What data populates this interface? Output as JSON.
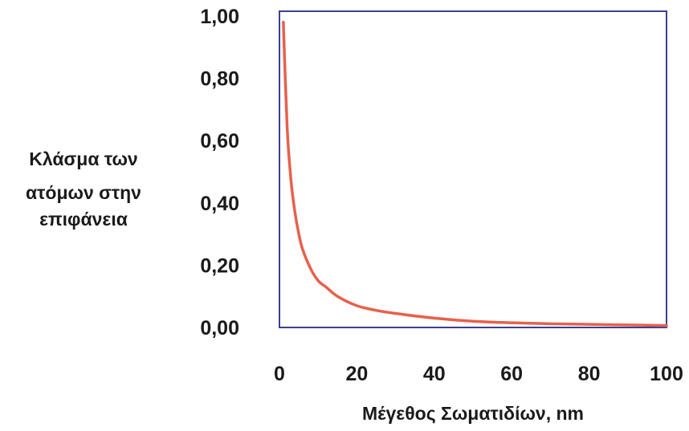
{
  "chart_data": {
    "type": "line",
    "title": "",
    "xlabel": "Μέγεθος Σωματιδίων, nm",
    "ylabel_lines": [
      "Κλάσμα των",
      "ατόμων στην",
      "επιφάνεια"
    ],
    "xlim": [
      0,
      100
    ],
    "ylim": [
      0,
      1
    ],
    "xticks": [
      0,
      20,
      40,
      60,
      80,
      100
    ],
    "xtick_labels": [
      "0",
      "20",
      "40",
      "60",
      "80",
      "100"
    ],
    "yticks": [
      0,
      0.2,
      0.4,
      0.6,
      0.8,
      1.0
    ],
    "ytick_labels": [
      "0,00",
      "0,20",
      "0,40",
      "0,60",
      "0,80",
      "1,00"
    ],
    "grid": false,
    "legend": "none",
    "frame_color": "#3b3f8f",
    "line_color": "#e8604c",
    "series": [
      {
        "x": [
          1,
          2,
          3,
          4,
          5,
          6,
          8,
          10,
          12,
          15,
          20,
          25,
          30,
          40,
          50,
          60,
          70,
          80,
          90,
          100
        ],
        "y": [
          0.98,
          0.64,
          0.47,
          0.37,
          0.3,
          0.25,
          0.19,
          0.15,
          0.13,
          0.1,
          0.07,
          0.055,
          0.045,
          0.03,
          0.02,
          0.015,
          0.012,
          0.01,
          0.008,
          0.006
        ]
      }
    ]
  }
}
